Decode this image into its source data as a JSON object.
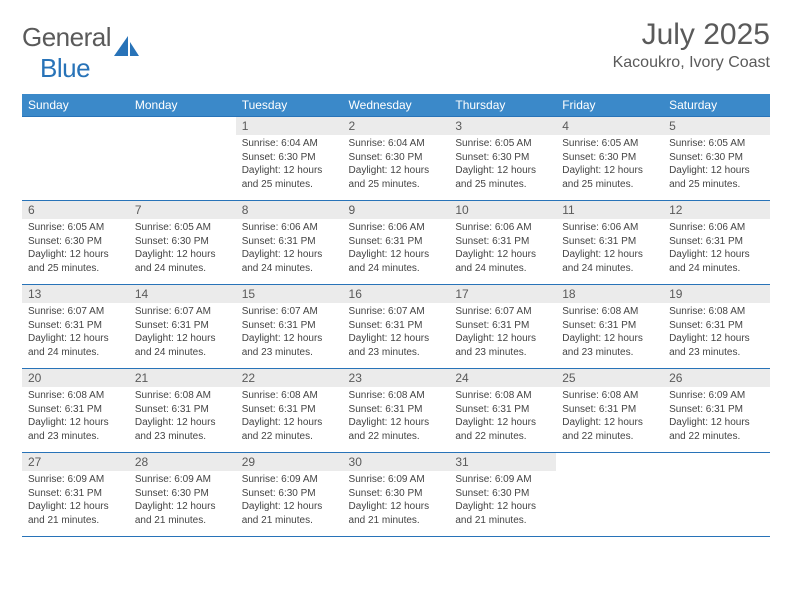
{
  "logo": {
    "text1": "General",
    "text2": "Blue"
  },
  "title": "July 2025",
  "location": "Kacoukro, Ivory Coast",
  "colors": {
    "header_bg": "#3b89c9",
    "header_text": "#ffffff",
    "border": "#2873b8",
    "daynum_bg": "#ebebeb",
    "text_main": "#5a5a5a",
    "text_body": "#444444",
    "logo_blue": "#2873b8"
  },
  "weekdays": [
    "Sunday",
    "Monday",
    "Tuesday",
    "Wednesday",
    "Thursday",
    "Friday",
    "Saturday"
  ],
  "weeks": [
    [
      {
        "n": "",
        "sr": "",
        "ss": "",
        "dl": ""
      },
      {
        "n": "",
        "sr": "",
        "ss": "",
        "dl": ""
      },
      {
        "n": "1",
        "sr": "Sunrise: 6:04 AM",
        "ss": "Sunset: 6:30 PM",
        "dl": "Daylight: 12 hours and 25 minutes."
      },
      {
        "n": "2",
        "sr": "Sunrise: 6:04 AM",
        "ss": "Sunset: 6:30 PM",
        "dl": "Daylight: 12 hours and 25 minutes."
      },
      {
        "n": "3",
        "sr": "Sunrise: 6:05 AM",
        "ss": "Sunset: 6:30 PM",
        "dl": "Daylight: 12 hours and 25 minutes."
      },
      {
        "n": "4",
        "sr": "Sunrise: 6:05 AM",
        "ss": "Sunset: 6:30 PM",
        "dl": "Daylight: 12 hours and 25 minutes."
      },
      {
        "n": "5",
        "sr": "Sunrise: 6:05 AM",
        "ss": "Sunset: 6:30 PM",
        "dl": "Daylight: 12 hours and 25 minutes."
      }
    ],
    [
      {
        "n": "6",
        "sr": "Sunrise: 6:05 AM",
        "ss": "Sunset: 6:30 PM",
        "dl": "Daylight: 12 hours and 25 minutes."
      },
      {
        "n": "7",
        "sr": "Sunrise: 6:05 AM",
        "ss": "Sunset: 6:30 PM",
        "dl": "Daylight: 12 hours and 24 minutes."
      },
      {
        "n": "8",
        "sr": "Sunrise: 6:06 AM",
        "ss": "Sunset: 6:31 PM",
        "dl": "Daylight: 12 hours and 24 minutes."
      },
      {
        "n": "9",
        "sr": "Sunrise: 6:06 AM",
        "ss": "Sunset: 6:31 PM",
        "dl": "Daylight: 12 hours and 24 minutes."
      },
      {
        "n": "10",
        "sr": "Sunrise: 6:06 AM",
        "ss": "Sunset: 6:31 PM",
        "dl": "Daylight: 12 hours and 24 minutes."
      },
      {
        "n": "11",
        "sr": "Sunrise: 6:06 AM",
        "ss": "Sunset: 6:31 PM",
        "dl": "Daylight: 12 hours and 24 minutes."
      },
      {
        "n": "12",
        "sr": "Sunrise: 6:06 AM",
        "ss": "Sunset: 6:31 PM",
        "dl": "Daylight: 12 hours and 24 minutes."
      }
    ],
    [
      {
        "n": "13",
        "sr": "Sunrise: 6:07 AM",
        "ss": "Sunset: 6:31 PM",
        "dl": "Daylight: 12 hours and 24 minutes."
      },
      {
        "n": "14",
        "sr": "Sunrise: 6:07 AM",
        "ss": "Sunset: 6:31 PM",
        "dl": "Daylight: 12 hours and 24 minutes."
      },
      {
        "n": "15",
        "sr": "Sunrise: 6:07 AM",
        "ss": "Sunset: 6:31 PM",
        "dl": "Daylight: 12 hours and 23 minutes."
      },
      {
        "n": "16",
        "sr": "Sunrise: 6:07 AM",
        "ss": "Sunset: 6:31 PM",
        "dl": "Daylight: 12 hours and 23 minutes."
      },
      {
        "n": "17",
        "sr": "Sunrise: 6:07 AM",
        "ss": "Sunset: 6:31 PM",
        "dl": "Daylight: 12 hours and 23 minutes."
      },
      {
        "n": "18",
        "sr": "Sunrise: 6:08 AM",
        "ss": "Sunset: 6:31 PM",
        "dl": "Daylight: 12 hours and 23 minutes."
      },
      {
        "n": "19",
        "sr": "Sunrise: 6:08 AM",
        "ss": "Sunset: 6:31 PM",
        "dl": "Daylight: 12 hours and 23 minutes."
      }
    ],
    [
      {
        "n": "20",
        "sr": "Sunrise: 6:08 AM",
        "ss": "Sunset: 6:31 PM",
        "dl": "Daylight: 12 hours and 23 minutes."
      },
      {
        "n": "21",
        "sr": "Sunrise: 6:08 AM",
        "ss": "Sunset: 6:31 PM",
        "dl": "Daylight: 12 hours and 23 minutes."
      },
      {
        "n": "22",
        "sr": "Sunrise: 6:08 AM",
        "ss": "Sunset: 6:31 PM",
        "dl": "Daylight: 12 hours and 22 minutes."
      },
      {
        "n": "23",
        "sr": "Sunrise: 6:08 AM",
        "ss": "Sunset: 6:31 PM",
        "dl": "Daylight: 12 hours and 22 minutes."
      },
      {
        "n": "24",
        "sr": "Sunrise: 6:08 AM",
        "ss": "Sunset: 6:31 PM",
        "dl": "Daylight: 12 hours and 22 minutes."
      },
      {
        "n": "25",
        "sr": "Sunrise: 6:08 AM",
        "ss": "Sunset: 6:31 PM",
        "dl": "Daylight: 12 hours and 22 minutes."
      },
      {
        "n": "26",
        "sr": "Sunrise: 6:09 AM",
        "ss": "Sunset: 6:31 PM",
        "dl": "Daylight: 12 hours and 22 minutes."
      }
    ],
    [
      {
        "n": "27",
        "sr": "Sunrise: 6:09 AM",
        "ss": "Sunset: 6:31 PM",
        "dl": "Daylight: 12 hours and 21 minutes."
      },
      {
        "n": "28",
        "sr": "Sunrise: 6:09 AM",
        "ss": "Sunset: 6:30 PM",
        "dl": "Daylight: 12 hours and 21 minutes."
      },
      {
        "n": "29",
        "sr": "Sunrise: 6:09 AM",
        "ss": "Sunset: 6:30 PM",
        "dl": "Daylight: 12 hours and 21 minutes."
      },
      {
        "n": "30",
        "sr": "Sunrise: 6:09 AM",
        "ss": "Sunset: 6:30 PM",
        "dl": "Daylight: 12 hours and 21 minutes."
      },
      {
        "n": "31",
        "sr": "Sunrise: 6:09 AM",
        "ss": "Sunset: 6:30 PM",
        "dl": "Daylight: 12 hours and 21 minutes."
      },
      {
        "n": "",
        "sr": "",
        "ss": "",
        "dl": ""
      },
      {
        "n": "",
        "sr": "",
        "ss": "",
        "dl": ""
      }
    ]
  ]
}
